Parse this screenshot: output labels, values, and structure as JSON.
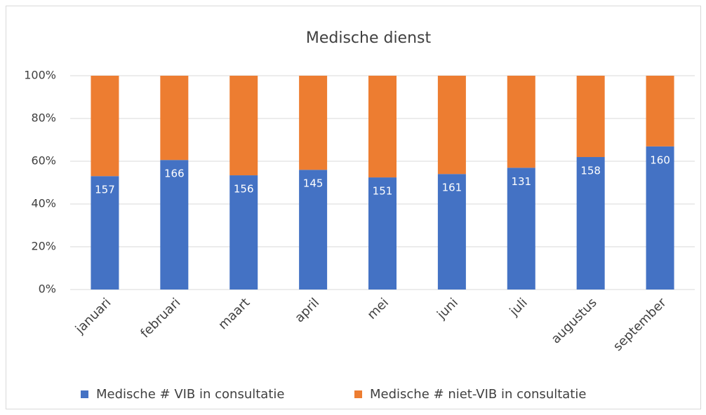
{
  "chart_data": {
    "type": "bar",
    "stacking": "percent",
    "title": "Medische dienst",
    "categories": [
      "januari",
      "februari",
      "maart",
      "april",
      "mei",
      "juni",
      "juli",
      "augustus",
      "september"
    ],
    "series": [
      {
        "name": "Medische # VIB in consultatie",
        "color": "#4472c4",
        "values": [
          157,
          166,
          156,
          145,
          151,
          161,
          131,
          158,
          160
        ],
        "show_labels": true
      },
      {
        "name": "Medische # niet-VIB in consultatie",
        "color": "#ed7d31",
        "values": [
          139,
          108,
          136,
          114,
          137,
          137,
          99,
          97,
          79
        ],
        "show_labels": false
      }
    ],
    "ylim": [
      0,
      100
    ],
    "yticks": [
      {
        "value": 0,
        "label": "0%"
      },
      {
        "value": 20,
        "label": "20%"
      },
      {
        "value": 40,
        "label": "40%"
      },
      {
        "value": 60,
        "label": "60%"
      },
      {
        "value": 80,
        "label": "80%"
      },
      {
        "value": 100,
        "label": "100%"
      }
    ],
    "grid": true,
    "legend": "bottom"
  }
}
